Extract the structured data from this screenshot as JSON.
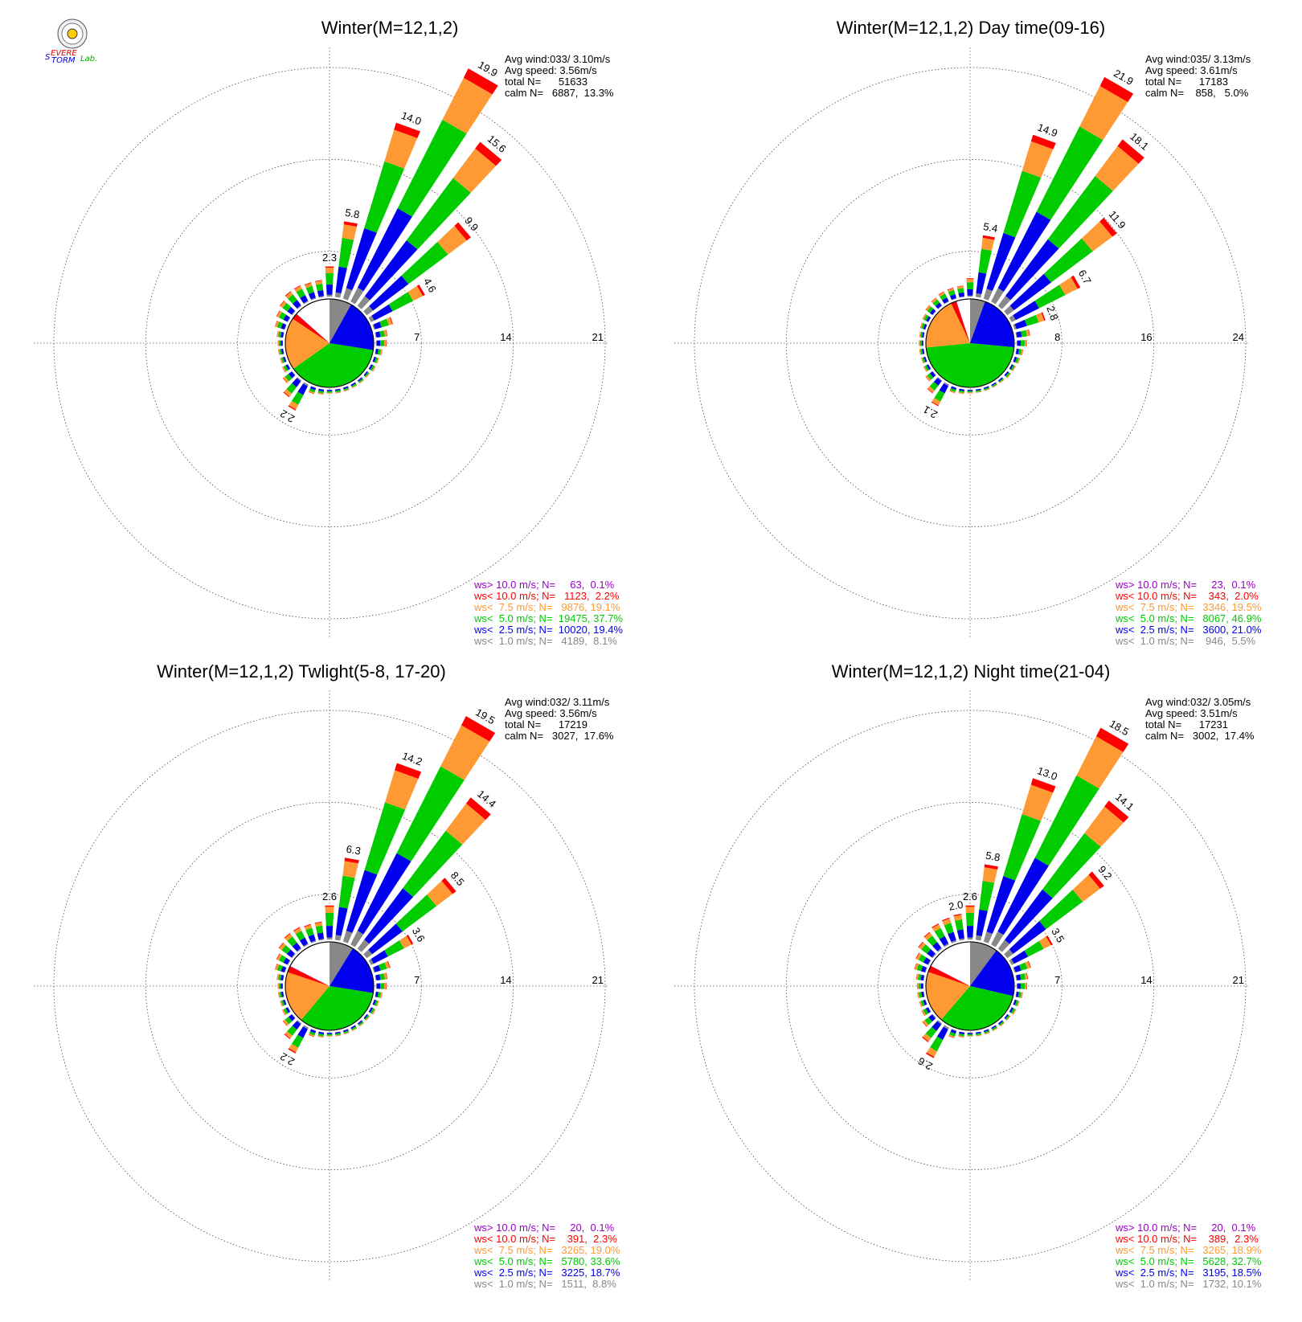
{
  "logo": {
    "parts": [
      {
        "text": "S",
        "color": "#0000dd"
      },
      {
        "text": "EVERE",
        "color": "#dd0000"
      },
      {
        "text": "TORM",
        "color": "#0000dd"
      },
      {
        "text": "Lab.",
        "color": "#00aa00"
      }
    ]
  },
  "colors": {
    "gt10": "#9900cc",
    "lt10": "#ff0000",
    "lt75": "#ff9933",
    "lt50": "#00cc00",
    "lt25": "#0000ee",
    "lt10ms": "#888888",
    "text": "#000000"
  },
  "chart_data": [
    {
      "type": "wind-rose",
      "title": "Winter(M=12,1,2)",
      "rmax": 21,
      "ring_labels": [
        "7",
        "14",
        "21"
      ],
      "stats": [
        "Avg wind:033/ 3.10m/s",
        "Avg speed: 3.56m/s",
        "total N=      51633",
        "calm N=   6887,  13.3%"
      ],
      "bar_labels": [
        {
          "dir": 0,
          "text": "2.3"
        },
        {
          "dir": 10,
          "text": "5.8"
        },
        {
          "dir": 20,
          "text": "14.0"
        },
        {
          "dir": 30,
          "text": "19.9"
        },
        {
          "dir": 40,
          "text": "15.6"
        },
        {
          "dir": 50,
          "text": "9.9"
        },
        {
          "dir": 60,
          "text": "4.6"
        },
        {
          "dir": 210,
          "text": "2.2"
        }
      ],
      "directions": [
        0,
        10,
        20,
        30,
        40,
        50,
        60,
        70,
        80,
        90,
        100,
        110,
        120,
        130,
        140,
        150,
        160,
        170,
        180,
        190,
        200,
        210,
        220,
        230,
        240,
        250,
        260,
        270,
        280,
        290,
        300,
        310,
        320,
        330,
        340,
        350
      ],
      "totals": [
        2.3,
        5.8,
        14.0,
        19.9,
        15.6,
        9.9,
        4.6,
        1.5,
        0.9,
        0.8,
        0.5,
        0.4,
        0.4,
        0.3,
        0.3,
        0.3,
        0.3,
        0.3,
        0.3,
        0.4,
        0.5,
        2.2,
        1.6,
        0.9,
        0.5,
        0.4,
        0.4,
        0.4,
        0.5,
        0.8,
        1.0,
        1.2,
        1.4,
        1.4,
        1.3,
        1.3
      ],
      "pie_shares": [
        8.1,
        19.4,
        37.7,
        19.1,
        2.2,
        0.1
      ],
      "legend": [
        {
          "key": "gt10",
          "text": "ws> 10.0 m/s; N=     63,  0.1%"
        },
        {
          "key": "lt10",
          "text": "ws< 10.0 m/s; N=   1123,  2.2%"
        },
        {
          "key": "lt75",
          "text": "ws<  7.5 m/s; N=   9876, 19.1%"
        },
        {
          "key": "lt50",
          "text": "ws<  5.0 m/s; N=  19475, 37.7%"
        },
        {
          "key": "lt25",
          "text": "ws<  2.5 m/s; N=  10020, 19.4%"
        },
        {
          "key": "lt10ms",
          "text": "ws<  1.0 m/s; N=   4189,  8.1%"
        }
      ]
    },
    {
      "type": "wind-rose",
      "title": "Winter(M=12,1,2) Day time(09-16)",
      "rmax": 24,
      "ring_labels": [
        "8",
        "16",
        "24"
      ],
      "stats": [
        "Avg wind:035/ 3.13m/s",
        "Avg speed: 3.61m/s",
        "total N=      17183",
        "calm N=    858,   5.0%"
      ],
      "bar_labels": [
        {
          "dir": 10,
          "text": "5.4"
        },
        {
          "dir": 20,
          "text": "14.9"
        },
        {
          "dir": 30,
          "text": "21.9"
        },
        {
          "dir": 40,
          "text": "18.1"
        },
        {
          "dir": 50,
          "text": "11.9"
        },
        {
          "dir": 60,
          "text": "6.7"
        },
        {
          "dir": 70,
          "text": "2.8"
        },
        {
          "dir": 210,
          "text": "2.1"
        }
      ],
      "directions": [
        0,
        10,
        20,
        30,
        40,
        50,
        60,
        70,
        80,
        90,
        100,
        110,
        120,
        130,
        140,
        150,
        160,
        170,
        180,
        190,
        200,
        210,
        220,
        230,
        240,
        250,
        260,
        270,
        280,
        290,
        300,
        310,
        320,
        330,
        340,
        350
      ],
      "totals": [
        1.6,
        5.4,
        14.9,
        21.9,
        18.1,
        11.9,
        6.7,
        2.8,
        1.2,
        0.9,
        0.6,
        0.5,
        0.4,
        0.4,
        0.3,
        0.3,
        0.3,
        0.3,
        0.3,
        0.4,
        0.5,
        2.1,
        1.4,
        0.8,
        0.5,
        0.4,
        0.4,
        0.4,
        0.4,
        0.5,
        0.6,
        0.8,
        0.9,
        1.0,
        1.0,
        1.0
      ],
      "pie_shares": [
        5.5,
        21.0,
        46.9,
        19.5,
        2.0,
        0.1
      ],
      "legend": [
        {
          "key": "gt10",
          "text": "ws> 10.0 m/s; N=     23,  0.1%"
        },
        {
          "key": "lt10",
          "text": "ws< 10.0 m/s; N=    343,  2.0%"
        },
        {
          "key": "lt75",
          "text": "ws<  7.5 m/s; N=   3346, 19.5%"
        },
        {
          "key": "lt50",
          "text": "ws<  5.0 m/s; N=   8067, 46.9%"
        },
        {
          "key": "lt25",
          "text": "ws<  2.5 m/s; N=   3600, 21.0%"
        },
        {
          "key": "lt10ms",
          "text": "ws<  1.0 m/s; N=    946,  5.5%"
        }
      ]
    },
    {
      "type": "wind-rose",
      "title": "Winter(M=12,1,2) Twlight(5-8, 17-20)",
      "rmax": 21,
      "ring_labels": [
        "7",
        "14",
        "21"
      ],
      "stats": [
        "Avg wind:032/ 3.11m/s",
        "Avg speed: 3.56m/s",
        "total N=      17219",
        "calm N=   3027,  17.6%"
      ],
      "bar_labels": [
        {
          "dir": 0,
          "text": "2.6"
        },
        {
          "dir": 10,
          "text": "6.3"
        },
        {
          "dir": 20,
          "text": "14.2"
        },
        {
          "dir": 30,
          "text": "19.5"
        },
        {
          "dir": 40,
          "text": "14.4"
        },
        {
          "dir": 50,
          "text": "8.5"
        },
        {
          "dir": 60,
          "text": "3.6"
        },
        {
          "dir": 210,
          "text": "2.2"
        }
      ],
      "directions": [
        0,
        10,
        20,
        30,
        40,
        50,
        60,
        70,
        80,
        90,
        100,
        110,
        120,
        130,
        140,
        150,
        160,
        170,
        180,
        190,
        200,
        210,
        220,
        230,
        240,
        250,
        260,
        270,
        280,
        290,
        300,
        310,
        320,
        330,
        340,
        350
      ],
      "totals": [
        2.6,
        6.3,
        14.2,
        19.5,
        14.4,
        8.5,
        3.6,
        1.3,
        0.9,
        0.8,
        0.5,
        0.4,
        0.4,
        0.3,
        0.3,
        0.3,
        0.3,
        0.3,
        0.3,
        0.4,
        0.5,
        2.2,
        1.5,
        0.9,
        0.5,
        0.4,
        0.4,
        0.4,
        0.5,
        0.8,
        1.0,
        1.3,
        1.5,
        1.5,
        1.4,
        1.4
      ],
      "pie_shares": [
        8.8,
        18.7,
        33.6,
        19.0,
        2.3,
        0.1
      ],
      "legend": [
        {
          "key": "gt10",
          "text": "ws> 10.0 m/s; N=     20,  0.1%"
        },
        {
          "key": "lt10",
          "text": "ws< 10.0 m/s; N=    391,  2.3%"
        },
        {
          "key": "lt75",
          "text": "ws<  7.5 m/s; N=   3265, 19.0%"
        },
        {
          "key": "lt50",
          "text": "ws<  5.0 m/s; N=   5780, 33.6%"
        },
        {
          "key": "lt25",
          "text": "ws<  2.5 m/s; N=   3225, 18.7%"
        },
        {
          "key": "lt10ms",
          "text": "ws<  1.0 m/s; N=   1511,  8.8%"
        }
      ]
    },
    {
      "type": "wind-rose",
      "title": "Winter(M=12,1,2) Night time(21-04)",
      "rmax": 21,
      "ring_labels": [
        "7",
        "14",
        "21"
      ],
      "stats": [
        "Avg wind:032/ 3.05m/s",
        "Avg speed: 3.51m/s",
        "total N=      17231",
        "calm N=   3002,  17.4%"
      ],
      "bar_labels": [
        {
          "dir": 350,
          "text": "2.0"
        },
        {
          "dir": 0,
          "text": "2.6"
        },
        {
          "dir": 10,
          "text": "5.8"
        },
        {
          "dir": 20,
          "text": "13.0"
        },
        {
          "dir": 30,
          "text": "18.5"
        },
        {
          "dir": 40,
          "text": "14.1"
        },
        {
          "dir": 50,
          "text": "9.2"
        },
        {
          "dir": 60,
          "text": "3.5"
        },
        {
          "dir": 210,
          "text": "2.6"
        }
      ],
      "directions": [
        0,
        10,
        20,
        30,
        40,
        50,
        60,
        70,
        80,
        90,
        100,
        110,
        120,
        130,
        140,
        150,
        160,
        170,
        180,
        190,
        200,
        210,
        220,
        230,
        240,
        250,
        260,
        270,
        280,
        290,
        300,
        310,
        320,
        330,
        340,
        350
      ],
      "totals": [
        2.6,
        5.8,
        13.0,
        18.5,
        14.1,
        9.2,
        3.5,
        1.3,
        0.9,
        0.8,
        0.5,
        0.4,
        0.4,
        0.3,
        0.3,
        0.3,
        0.3,
        0.3,
        0.3,
        0.4,
        0.6,
        2.6,
        1.8,
        1.0,
        0.6,
        0.5,
        0.5,
        0.5,
        0.6,
        0.9,
        1.1,
        1.4,
        1.6,
        1.8,
        1.9,
        2.0
      ],
      "pie_shares": [
        10.1,
        18.5,
        32.7,
        18.9,
        2.3,
        0.1
      ],
      "legend": [
        {
          "key": "gt10",
          "text": "ws> 10.0 m/s; N=     20,  0.1%"
        },
        {
          "key": "lt10",
          "text": "ws< 10.0 m/s; N=    389,  2.3%"
        },
        {
          "key": "lt75",
          "text": "ws<  7.5 m/s; N=   3265, 18.9%"
        },
        {
          "key": "lt50",
          "text": "ws<  5.0 m/s; N=   5628, 32.7%"
        },
        {
          "key": "lt25",
          "text": "ws<  2.5 m/s; N=   3195, 18.5%"
        },
        {
          "key": "lt10ms",
          "text": "ws<  1.0 m/s; N=   1732, 10.1%"
        }
      ]
    }
  ]
}
